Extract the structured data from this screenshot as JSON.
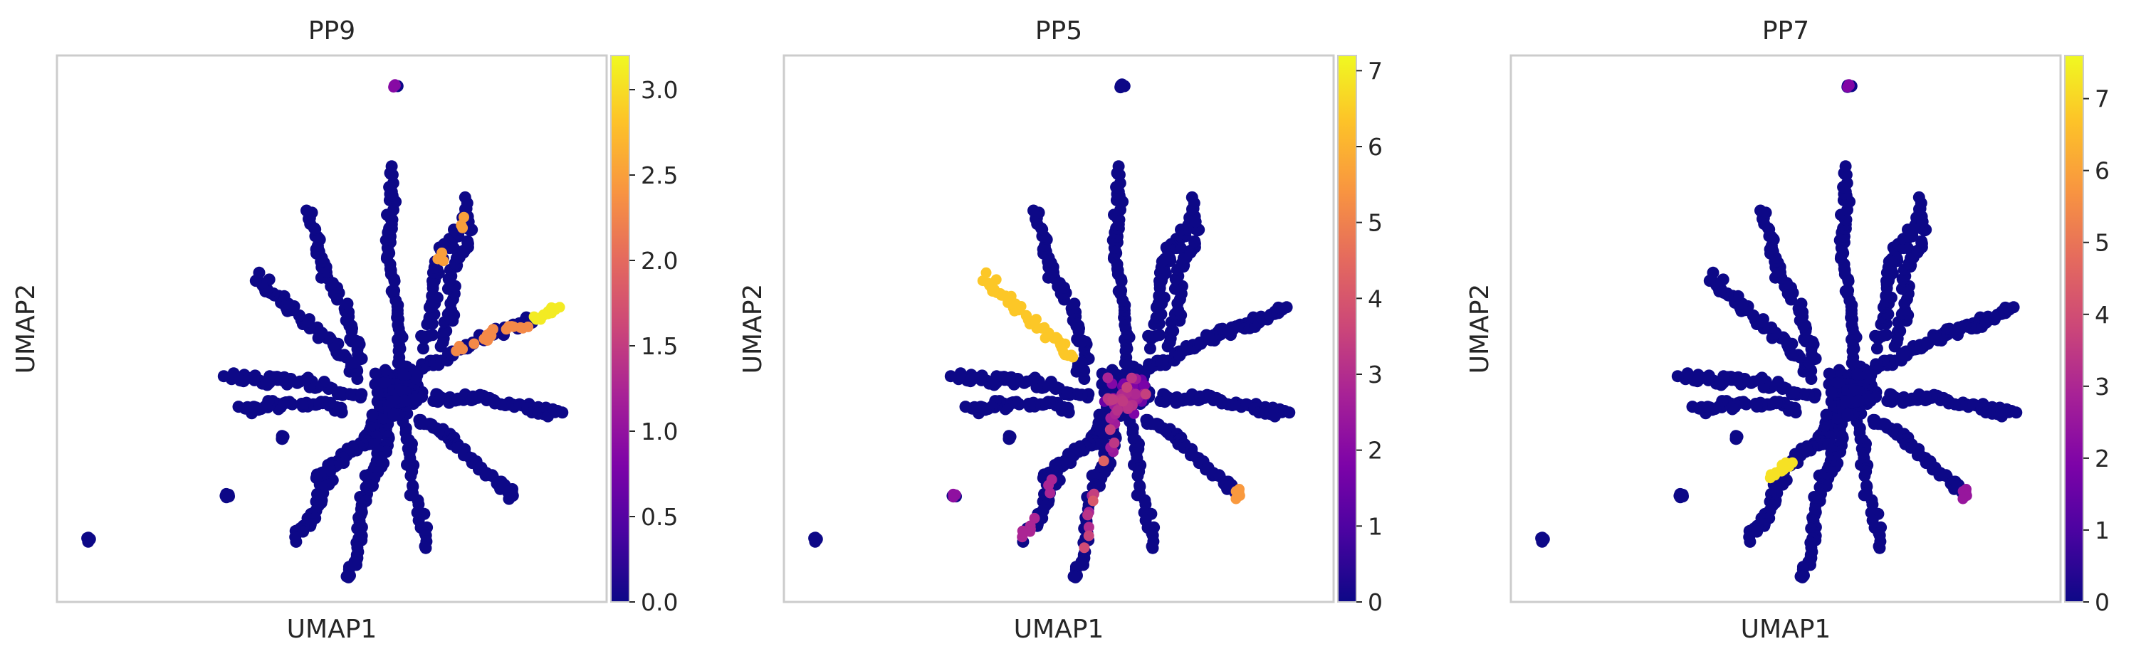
{
  "chart_data": [
    {
      "type": "scatter",
      "title": "PP9",
      "xlabel": "UMAP1",
      "ylabel": "UMAP2",
      "colormap": "plasma",
      "colorbar": {
        "range": [
          0,
          3.2
        ],
        "ticks": [
          0.0,
          0.5,
          1.0,
          1.5,
          2.0,
          2.5,
          3.0
        ],
        "tick_labels": [
          "0.0",
          "0.5",
          "1.0",
          "1.5",
          "2.0",
          "2.5",
          "3.0"
        ]
      },
      "grid": false,
      "highlights": [
        {
          "region": "arm-east",
          "value": 2.3
        },
        {
          "region": "arm-east-tip",
          "value": 3.1
        },
        {
          "region": "top-island",
          "value": 0.9
        },
        {
          "region": "arm-north-east",
          "value": 2.5
        }
      ]
    },
    {
      "type": "scatter",
      "title": "PP5",
      "xlabel": "UMAP1",
      "ylabel": "UMAP2",
      "colormap": "plasma",
      "colorbar": {
        "range": [
          0,
          7.2
        ],
        "ticks": [
          0,
          1,
          2,
          3,
          4,
          5,
          6,
          7
        ],
        "tick_labels": [
          "0",
          "1",
          "2",
          "3",
          "4",
          "5",
          "6",
          "7"
        ]
      },
      "grid": false,
      "highlights": [
        {
          "region": "arm-west-upper",
          "value": 6.4
        },
        {
          "region": "center",
          "value": 2.5
        },
        {
          "region": "arm-south",
          "value": 3.5
        },
        {
          "region": "arm-south-west",
          "value": 2.8
        },
        {
          "region": "left-island",
          "value": 2.2
        },
        {
          "region": "arm-south-east-tip",
          "value": 5.5
        }
      ]
    },
    {
      "type": "scatter",
      "title": "PP7",
      "xlabel": "UMAP1",
      "ylabel": "UMAP2",
      "colormap": "plasma",
      "colorbar": {
        "range": [
          0,
          7.6
        ],
        "ticks": [
          0,
          1,
          2,
          3,
          4,
          5,
          6,
          7
        ],
        "tick_labels": [
          "0",
          "1",
          "2",
          "3",
          "4",
          "5",
          "6",
          "7"
        ]
      },
      "grid": false,
      "highlights": [
        {
          "region": "arm-south-west-base",
          "value": 7.2
        },
        {
          "region": "top-island",
          "value": 2.0
        },
        {
          "region": "arm-south-east-tip",
          "value": 2.5
        }
      ]
    }
  ]
}
